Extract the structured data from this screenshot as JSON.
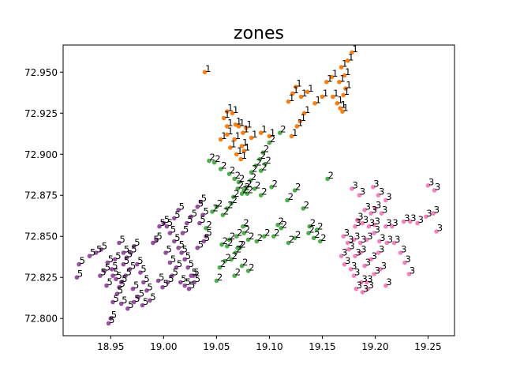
{
  "chart_data": {
    "type": "scatter",
    "title": "zones",
    "xlabel": "",
    "ylabel": "",
    "xlim": [
      18.905,
      19.275
    ],
    "ylim": [
      72.7895,
      72.9665
    ],
    "grid": false,
    "legend": "none",
    "xticks": [
      "18.95",
      "19.00",
      "19.05",
      "19.10",
      "19.15",
      "19.20",
      "19.25"
    ],
    "xtick_values": [
      18.95,
      19.0,
      19.05,
      19.1,
      19.15,
      19.2,
      19.25
    ],
    "yticks": [
      "72.800",
      "72.825",
      "72.850",
      "72.875",
      "72.900",
      "72.925",
      "72.950"
    ],
    "ytick_values": [
      72.8,
      72.825,
      72.85,
      72.875,
      72.9,
      72.925,
      72.95
    ],
    "series": [
      {
        "label": "1",
        "color": "#ff7f0e",
        "points": [
          [
            19.039,
            72.95
          ],
          [
            19.06,
            72.926
          ],
          [
            19.057,
            72.922
          ],
          [
            19.065,
            72.925
          ],
          [
            19.068,
            72.918
          ],
          [
            19.06,
            72.912
          ],
          [
            19.054,
            72.909
          ],
          [
            19.067,
            72.909
          ],
          [
            19.071,
            72.917
          ],
          [
            19.075,
            72.913
          ],
          [
            19.078,
            72.916
          ],
          [
            19.063,
            72.904
          ],
          [
            19.069,
            72.9
          ],
          [
            19.073,
            72.897
          ],
          [
            19.076,
            72.902
          ],
          [
            19.083,
            72.91
          ],
          [
            19.092,
            72.913
          ],
          [
            19.1,
            72.911
          ],
          [
            19.074,
            72.905
          ],
          [
            19.06,
            72.917
          ],
          [
            19.121,
            72.911
          ],
          [
            19.126,
            72.917
          ],
          [
            19.129,
            72.92
          ],
          [
            19.133,
            72.925
          ],
          [
            19.122,
            72.937
          ],
          [
            19.118,
            72.932
          ],
          [
            19.125,
            72.941
          ],
          [
            19.13,
            72.935
          ],
          [
            19.136,
            72.938
          ],
          [
            19.143,
            72.931
          ],
          [
            19.15,
            72.935
          ],
          [
            19.154,
            72.944
          ],
          [
            19.159,
            72.947
          ],
          [
            19.16,
            72.935
          ],
          [
            19.164,
            72.931
          ],
          [
            19.167,
            72.928
          ],
          [
            19.17,
            72.936
          ],
          [
            19.166,
            72.944
          ],
          [
            19.171,
            72.948
          ],
          [
            19.168,
            72.953
          ],
          [
            19.174,
            72.957
          ],
          [
            19.178,
            72.962
          ],
          [
            19.172,
            72.94
          ],
          [
            19.169,
            72.926
          ]
        ]
      },
      {
        "label": "2",
        "color": "#4daf4a",
        "points": [
          [
            19.11,
            72.913
          ],
          [
            19.1,
            72.907
          ],
          [
            19.094,
            72.901
          ],
          [
            19.091,
            72.897
          ],
          [
            19.087,
            72.893
          ],
          [
            19.083,
            72.889
          ],
          [
            19.096,
            72.894
          ],
          [
            19.092,
            72.89
          ],
          [
            19.082,
            72.884
          ],
          [
            19.078,
            72.88
          ],
          [
            19.074,
            72.876
          ],
          [
            19.07,
            72.879
          ],
          [
            19.066,
            72.874
          ],
          [
            19.064,
            72.87
          ],
          [
            19.06,
            72.867
          ],
          [
            19.056,
            72.863
          ],
          [
            19.05,
            72.868
          ],
          [
            19.046,
            72.865
          ],
          [
            19.04,
            72.855
          ],
          [
            19.043,
            72.896
          ],
          [
            19.048,
            72.895
          ],
          [
            19.054,
            72.891
          ],
          [
            19.062,
            72.888
          ],
          [
            19.067,
            72.885
          ],
          [
            19.071,
            72.883
          ],
          [
            19.076,
            72.878
          ],
          [
            19.079,
            72.876
          ],
          [
            19.086,
            72.879
          ],
          [
            19.092,
            72.875
          ],
          [
            19.102,
            72.88
          ],
          [
            19.117,
            72.872
          ],
          [
            19.124,
            72.878
          ],
          [
            19.132,
            72.867
          ],
          [
            19.138,
            72.856
          ],
          [
            19.145,
            72.854
          ],
          [
            19.142,
            72.849
          ],
          [
            19.148,
            72.847
          ],
          [
            19.155,
            72.885
          ],
          [
            19.137,
            72.852
          ],
          [
            19.124,
            72.849
          ],
          [
            19.118,
            72.846
          ],
          [
            19.108,
            72.857
          ],
          [
            19.111,
            72.855
          ],
          [
            19.104,
            72.85
          ],
          [
            19.095,
            72.85
          ],
          [
            19.088,
            72.847
          ],
          [
            19.08,
            72.848
          ],
          [
            19.076,
            72.852
          ],
          [
            19.072,
            72.843
          ],
          [
            19.068,
            72.84
          ],
          [
            19.064,
            72.836
          ],
          [
            19.058,
            72.835
          ],
          [
            19.053,
            72.831
          ],
          [
            19.05,
            72.823
          ],
          [
            19.06,
            72.844
          ],
          [
            19.055,
            72.845
          ],
          [
            19.062,
            72.848
          ],
          [
            19.069,
            72.85
          ],
          [
            19.075,
            72.856
          ],
          [
            19.07,
            72.843
          ],
          [
            19.074,
            72.832
          ],
          [
            19.08,
            72.829
          ],
          [
            19.067,
            72.826
          ]
        ]
      },
      {
        "label": "3",
        "color": "#f781bf",
        "points": [
          [
            19.178,
            72.879
          ],
          [
            19.185,
            72.875
          ],
          [
            19.198,
            72.88
          ],
          [
            19.21,
            72.872
          ],
          [
            19.203,
            72.875
          ],
          [
            19.19,
            72.866
          ],
          [
            19.196,
            72.864
          ],
          [
            19.2,
            72.867
          ],
          [
            19.206,
            72.864
          ],
          [
            19.183,
            72.86
          ],
          [
            19.188,
            72.858
          ],
          [
            19.194,
            72.856
          ],
          [
            19.199,
            72.857
          ],
          [
            19.21,
            72.856
          ],
          [
            19.216,
            72.856
          ],
          [
            19.227,
            72.859
          ],
          [
            19.233,
            72.859
          ],
          [
            19.24,
            72.858
          ],
          [
            19.248,
            72.862
          ],
          [
            19.255,
            72.864
          ],
          [
            19.256,
            72.878
          ],
          [
            19.25,
            72.881
          ],
          [
            19.258,
            72.853
          ],
          [
            19.18,
            72.848
          ],
          [
            19.186,
            72.846
          ],
          [
            19.192,
            72.848
          ],
          [
            19.199,
            72.852
          ],
          [
            19.204,
            72.847
          ],
          [
            19.211,
            72.846
          ],
          [
            19.218,
            72.846
          ],
          [
            19.224,
            72.84
          ],
          [
            19.228,
            72.834
          ],
          [
            19.232,
            72.827
          ],
          [
            19.17,
            72.85
          ],
          [
            19.174,
            72.846
          ],
          [
            19.175,
            72.842
          ],
          [
            19.181,
            72.838
          ],
          [
            19.186,
            72.84
          ],
          [
            19.19,
            72.832
          ],
          [
            19.196,
            72.836
          ],
          [
            19.203,
            72.84
          ],
          [
            19.168,
            72.838
          ],
          [
            19.171,
            72.833
          ],
          [
            19.177,
            72.83
          ],
          [
            19.18,
            72.826
          ],
          [
            19.187,
            72.822
          ],
          [
            19.193,
            72.818
          ],
          [
            19.199,
            72.827
          ],
          [
            19.205,
            72.83
          ],
          [
            19.21,
            72.82
          ],
          [
            19.182,
            72.818
          ],
          [
            19.188,
            72.816
          ],
          [
            19.192,
            72.822
          ],
          [
            19.181,
            72.856
          ]
        ]
      },
      {
        "label": "5",
        "color": "#984ea3",
        "points": [
          [
            18.918,
            72.825
          ],
          [
            18.92,
            72.833
          ],
          [
            18.93,
            72.838
          ],
          [
            18.936,
            72.84
          ],
          [
            18.941,
            72.842
          ],
          [
            18.947,
            72.834
          ],
          [
            18.951,
            72.83
          ],
          [
            18.955,
            72.824
          ],
          [
            18.958,
            72.819
          ],
          [
            18.962,
            72.833
          ],
          [
            18.965,
            72.837
          ],
          [
            18.969,
            72.84
          ],
          [
            18.972,
            72.844
          ],
          [
            18.975,
            72.833
          ],
          [
            18.978,
            72.828
          ],
          [
            18.981,
            72.822
          ],
          [
            18.984,
            72.817
          ],
          [
            18.987,
            72.811
          ],
          [
            18.99,
            72.846
          ],
          [
            18.993,
            72.848
          ],
          [
            18.996,
            72.856
          ],
          [
            19.0,
            72.858
          ],
          [
            19.003,
            72.856
          ],
          [
            19.006,
            72.852
          ],
          [
            19.01,
            72.847
          ],
          [
            19.014,
            72.843
          ],
          [
            19.017,
            72.84
          ],
          [
            19.02,
            72.836
          ],
          [
            19.023,
            72.831
          ],
          [
            19.026,
            72.826
          ],
          [
            19.029,
            72.822
          ],
          [
            19.032,
            72.868
          ],
          [
            19.035,
            72.871
          ],
          [
            19.037,
            72.863
          ],
          [
            19.04,
            72.85
          ],
          [
            18.948,
            72.797
          ],
          [
            18.95,
            72.8
          ],
          [
            18.952,
            72.81
          ],
          [
            18.956,
            72.815
          ],
          [
            18.96,
            72.822
          ],
          [
            18.964,
            72.826
          ],
          [
            18.968,
            72.83
          ],
          [
            18.971,
            72.818
          ],
          [
            18.976,
            72.813
          ],
          [
            18.98,
            72.808
          ],
          [
            18.995,
            72.823
          ],
          [
            18.999,
            72.819
          ],
          [
            19.004,
            72.822
          ],
          [
            19.008,
            72.826
          ],
          [
            19.012,
            72.831
          ],
          [
            19.016,
            72.822
          ],
          [
            19.02,
            72.82
          ],
          [
            19.024,
            72.818
          ],
          [
            19.028,
            72.826
          ],
          [
            19.032,
            72.843
          ],
          [
            19.002,
            72.84
          ],
          [
            19.006,
            72.834
          ],
          [
            19.01,
            72.861
          ],
          [
            19.014,
            72.866
          ],
          [
            19.018,
            72.852
          ],
          [
            19.022,
            72.858
          ],
          [
            19.026,
            72.862
          ],
          [
            18.958,
            72.846
          ],
          [
            18.962,
            72.84
          ],
          [
            18.954,
            72.836
          ],
          [
            18.944,
            72.829
          ],
          [
            18.94,
            72.826
          ],
          [
            18.952,
            72.826
          ],
          [
            18.946,
            72.82
          ],
          [
            18.96,
            72.809
          ],
          [
            18.966,
            72.806
          ],
          [
            18.972,
            72.81
          ],
          [
            19.038,
            72.847
          ],
          [
            19.034,
            72.858
          ]
        ]
      }
    ]
  }
}
